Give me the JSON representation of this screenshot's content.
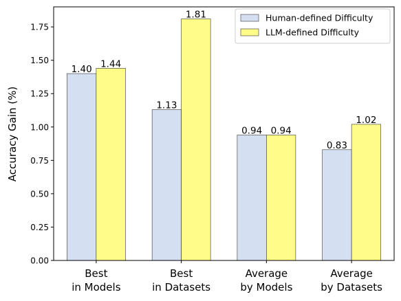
{
  "chart_data": {
    "type": "bar",
    "categories": [
      [
        "Best",
        "in Models"
      ],
      [
        "Best",
        "in Datasets"
      ],
      [
        "Average",
        "by Models"
      ],
      [
        "Average",
        "by Datasets"
      ]
    ],
    "series": [
      {
        "name": "Human-defined Difficulty",
        "values": [
          1.4,
          1.13,
          0.94,
          0.83
        ],
        "color": "#d4e0f2"
      },
      {
        "name": "LLM-defined Difficulty",
        "values": [
          1.44,
          1.81,
          0.94,
          1.02
        ],
        "color": "#fffd87"
      }
    ],
    "data_labels": [
      [
        "1.40",
        "1.13",
        "0.94",
        "0.83"
      ],
      [
        "1.44",
        "1.81",
        "0.94",
        "1.02"
      ]
    ],
    "ylabel": "Accuracy Gain (%)",
    "ylim": [
      0,
      1.9
    ],
    "yticks": [
      "0.00",
      "0.25",
      "0.50",
      "0.75",
      "1.00",
      "1.25",
      "1.50",
      "1.75"
    ],
    "grid": false,
    "legend_position": "top-right"
  }
}
